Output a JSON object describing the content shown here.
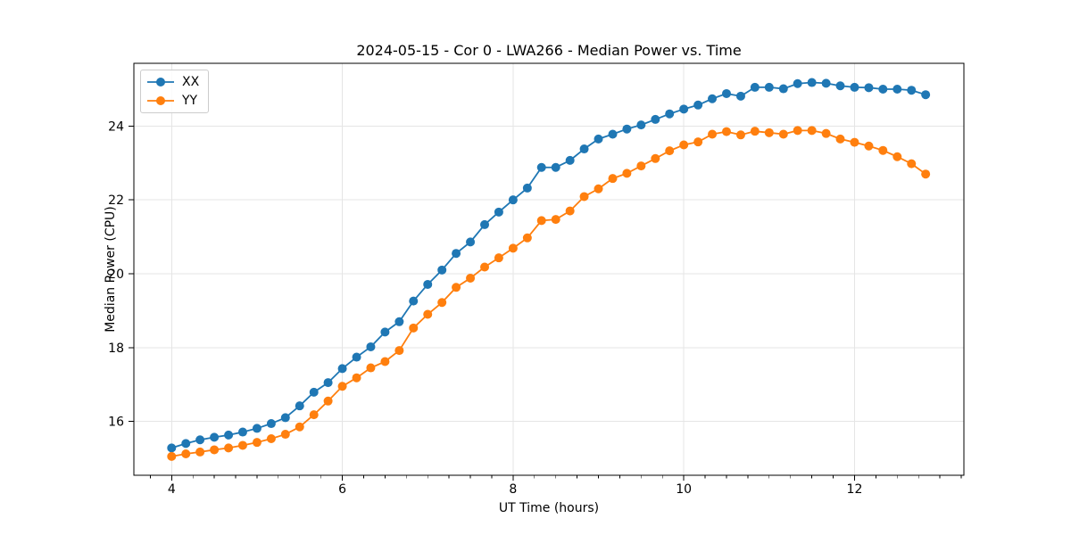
{
  "chart_data": {
    "type": "line",
    "title": "2024-05-15 - Cor 0 - LWA266 - Median Power vs. Time",
    "xlabel": "UT Time (hours)",
    "ylabel": "Median Power (CPU)",
    "xlim": [
      3.558,
      13.281
    ],
    "ylim": [
      14.54,
      25.7
    ],
    "xticks": [
      4,
      6,
      8,
      10,
      12
    ],
    "yticks": [
      16,
      18,
      20,
      22,
      24
    ],
    "x_minor_step": 0.25,
    "grid": true,
    "background": "#ffffff",
    "grid_color": "#e5e5e5",
    "legend": {
      "position": "upper left",
      "entries": [
        {
          "label": "XX",
          "color": "#1f77b4"
        },
        {
          "label": "YY",
          "color": "#ff7f0e"
        }
      ]
    },
    "marker": "circle",
    "x": [
      4.0,
      4.167,
      4.333,
      4.5,
      4.667,
      4.833,
      5.0,
      5.167,
      5.333,
      5.5,
      5.667,
      5.833,
      6.0,
      6.167,
      6.333,
      6.5,
      6.667,
      6.833,
      7.0,
      7.167,
      7.333,
      7.5,
      7.667,
      7.833,
      8.0,
      8.167,
      8.333,
      8.5,
      8.667,
      8.833,
      9.0,
      9.167,
      9.333,
      9.5,
      9.667,
      9.833,
      10.0,
      10.167,
      10.333,
      10.5,
      10.667,
      10.833,
      11.0,
      11.167,
      11.333,
      11.5,
      11.667,
      11.833,
      12.0,
      12.167,
      12.333,
      12.5,
      12.667,
      12.833
    ],
    "series": [
      {
        "name": "XX",
        "color": "#1f77b4",
        "values": [
          15.28,
          15.4,
          15.5,
          15.57,
          15.63,
          15.71,
          15.81,
          15.94,
          16.1,
          16.42,
          16.79,
          17.05,
          17.43,
          17.74,
          18.02,
          18.42,
          18.7,
          19.26,
          19.71,
          20.1,
          20.55,
          20.86,
          21.33,
          21.67,
          22.0,
          22.32,
          22.88,
          22.88,
          23.07,
          23.38,
          23.65,
          23.78,
          23.92,
          24.03,
          24.18,
          24.33,
          24.46,
          24.57,
          24.74,
          24.88,
          24.81,
          25.05,
          25.05,
          25.01,
          25.15,
          25.18,
          25.16,
          25.09,
          25.05,
          25.04,
          25.0,
          25.0,
          24.97,
          24.85
        ]
      },
      {
        "name": "YY",
        "color": "#ff7f0e",
        "values": [
          15.05,
          15.12,
          15.17,
          15.23,
          15.28,
          15.35,
          15.43,
          15.53,
          15.65,
          15.85,
          16.18,
          16.55,
          16.95,
          17.18,
          17.45,
          17.62,
          17.92,
          18.53,
          18.9,
          19.22,
          19.63,
          19.88,
          20.18,
          20.43,
          20.69,
          20.97,
          21.44,
          21.47,
          21.7,
          22.09,
          22.3,
          22.58,
          22.72,
          22.92,
          23.12,
          23.33,
          23.49,
          23.57,
          23.78,
          23.85,
          23.76,
          23.86,
          23.82,
          23.78,
          23.88,
          23.88,
          23.8,
          23.65,
          23.56,
          23.46,
          23.34,
          23.17,
          22.98,
          22.7
        ]
      }
    ]
  }
}
